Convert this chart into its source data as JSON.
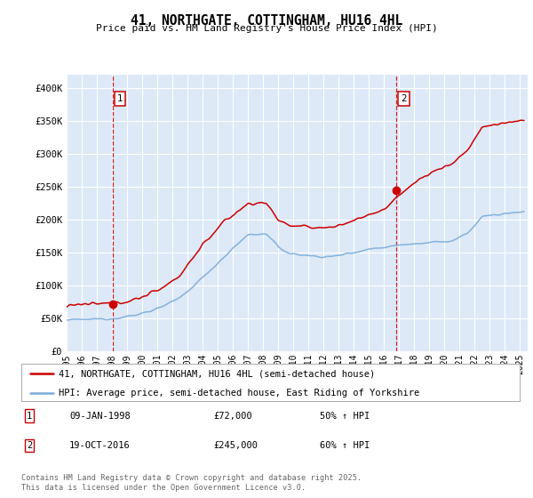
{
  "title": "41, NORTHGATE, COTTINGHAM, HU16 4HL",
  "subtitle": "Price paid vs. HM Land Registry's House Price Index (HPI)",
  "property_color": "#cc0000",
  "hpi_color": "#7aabda",
  "plot_bg_color": "#dde9f7",
  "grid_color": "#ffffff",
  "ylim": [
    0,
    420000
  ],
  "yticks": [
    0,
    50000,
    100000,
    150000,
    200000,
    250000,
    300000,
    350000,
    400000
  ],
  "ytick_labels": [
    "£0",
    "£50K",
    "£100K",
    "£150K",
    "£200K",
    "£250K",
    "£300K",
    "£350K",
    "£400K"
  ],
  "xmin": 1995.0,
  "xmax": 2025.5,
  "sale1_x": 1998.03,
  "sale1_y": 72000,
  "sale1_label": "1",
  "sale1_date": "09-JAN-1998",
  "sale1_price": "£72,000",
  "sale1_hpi": "50% ↑ HPI",
  "sale2_x": 2016.8,
  "sale2_y": 245000,
  "sale2_label": "2",
  "sale2_date": "19-OCT-2016",
  "sale2_price": "£245,000",
  "sale2_hpi": "60% ↑ HPI",
  "legend_property": "41, NORTHGATE, COTTINGHAM, HU16 4HL (semi-detached house)",
  "legend_hpi": "HPI: Average price, semi-detached house, East Riding of Yorkshire",
  "footer": "Contains HM Land Registry data © Crown copyright and database right 2025.\nThis data is licensed under the Open Government Licence v3.0.",
  "xticks": [
    1995,
    1996,
    1997,
    1998,
    1999,
    2000,
    2001,
    2002,
    2003,
    2004,
    2005,
    2006,
    2007,
    2008,
    2009,
    2010,
    2011,
    2012,
    2013,
    2014,
    2015,
    2016,
    2017,
    2018,
    2019,
    2020,
    2021,
    2022,
    2023,
    2024,
    2025
  ]
}
